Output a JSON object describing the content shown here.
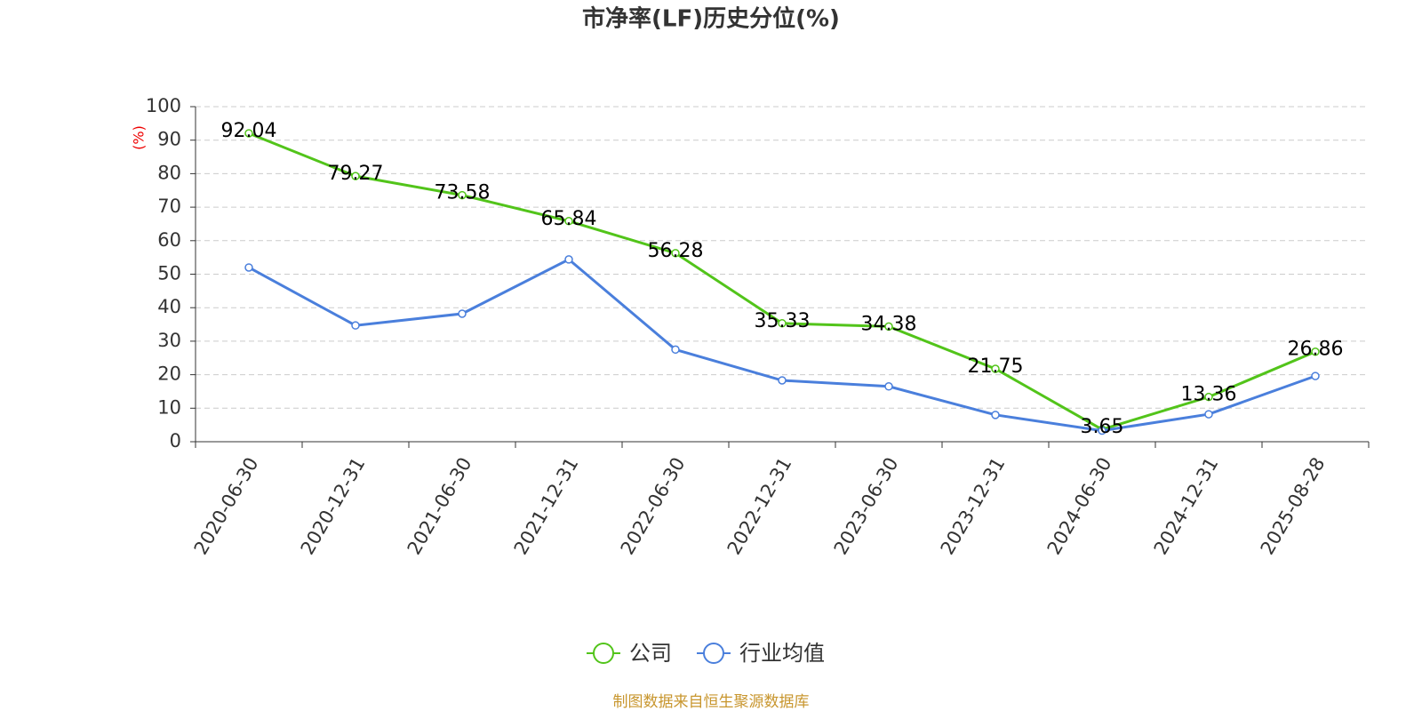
{
  "chart_data": {
    "type": "line",
    "title": "市净率(LF)历史分位(%)",
    "y_label": "(%)",
    "categories": [
      "2020-06-30",
      "2020-12-31",
      "2021-06-30",
      "2021-12-31",
      "2022-06-30",
      "2022-12-31",
      "2023-06-30",
      "2023-12-31",
      "2024-06-30",
      "2024-12-31",
      "2025-08-28"
    ],
    "series": [
      {
        "name": "公司",
        "color": "#52c41a",
        "values": [
          92.04,
          79.27,
          73.58,
          65.84,
          56.28,
          35.33,
          34.38,
          21.75,
          3.65,
          13.36,
          26.86
        ],
        "show_labels": true
      },
      {
        "name": "行业均值",
        "color": "#4a7fdc",
        "values": [
          52,
          34.7,
          38.2,
          54.4,
          27.5,
          18.3,
          16.5,
          8,
          3.3,
          8.2,
          19.6
        ],
        "show_labels": false
      }
    ],
    "ylim": [
      0,
      100
    ],
    "yticks": [
      0,
      10,
      20,
      30,
      40,
      50,
      60,
      70,
      80,
      90,
      100
    ],
    "grid": true,
    "source": "制图数据来自恒生聚源数据库"
  }
}
